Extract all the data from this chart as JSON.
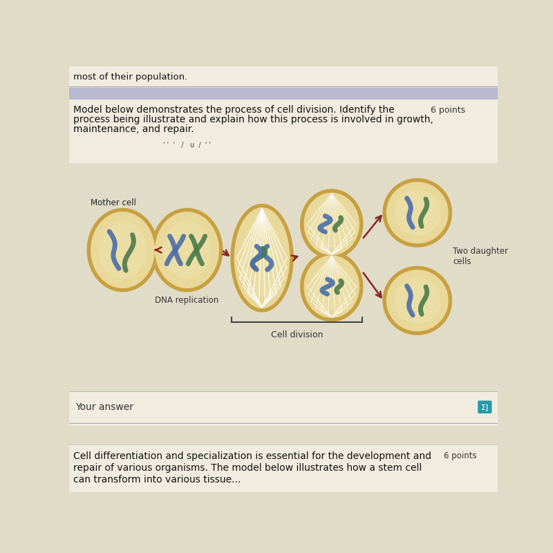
{
  "bg_top_stripe": "#b8b8d0",
  "bg_main": "#e0dcc8",
  "top_text": "most of their population.",
  "title_line1": "Model below demonstrates the process of cell division. Identify the",
  "title_line2": "process being illustrate and explain how this process is involved in growth,",
  "title_line3": "maintenance, and repair.",
  "points_text": "6 points",
  "cell_border": "#c8a040",
  "cell_fill": "#e8d89a",
  "cell_inner": "#f0e8b8",
  "spindle_color": "#f5f0e0",
  "chrom_blue": "#4a6ea8",
  "chrom_green": "#4a7a4a",
  "arrow_dark": "#882222",
  "arrow_gray": "#884444",
  "label_mother": "Mother cell",
  "label_dna": "DNA replication",
  "label_division": "Cell division",
  "label_daughter": "Two daughter\ncells",
  "your_answer": "Your answer",
  "bottom_text1": "Cell differentiation and specialization is essential for the development and",
  "bottom_text2": "repair of various organisms. The model below illustrates how a stem cell",
  "bottom_text3": "can transform into various tissue...",
  "bottom_points": "6 points",
  "sigma_color": "#2299aa"
}
